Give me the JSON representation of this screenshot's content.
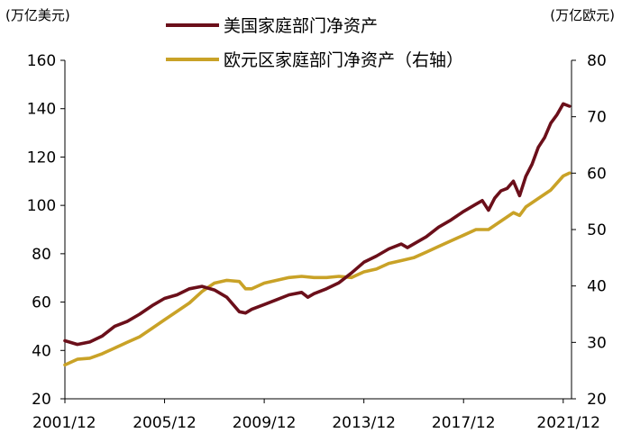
{
  "chart_data": {
    "type": "line",
    "title": "",
    "x_ticks": [
      "2001/12",
      "2005/12",
      "2009/12",
      "2013/12",
      "2017/12",
      "2021/12"
    ],
    "y_left": {
      "unit_label": "(万亿美元)",
      "ylim": [
        20,
        160
      ],
      "ticks": [
        20,
        40,
        60,
        80,
        100,
        120,
        140,
        160
      ]
    },
    "y_right": {
      "unit_label": "(万亿欧元)",
      "ylim": [
        20,
        80
      ],
      "ticks": [
        20,
        30,
        40,
        50,
        60,
        70,
        80
      ]
    },
    "legend_placement": "top-center",
    "series": [
      {
        "name": "美国家庭部门净资产",
        "axis": "left",
        "color": "#6b0f1a",
        "points": [
          [
            "2001/12",
            44
          ],
          [
            "2002/06",
            42.5
          ],
          [
            "2002/12",
            43.5
          ],
          [
            "2003/06",
            46
          ],
          [
            "2003/12",
            50
          ],
          [
            "2004/06",
            52
          ],
          [
            "2004/12",
            55
          ],
          [
            "2005/06",
            58.5
          ],
          [
            "2005/12",
            61.5
          ],
          [
            "2006/06",
            63
          ],
          [
            "2006/12",
            65.5
          ],
          [
            "2007/06",
            66.5
          ],
          [
            "2007/12",
            65
          ],
          [
            "2008/06",
            62
          ],
          [
            "2008/12",
            56
          ],
          [
            "2009/03",
            55.5
          ],
          [
            "2009/06",
            57
          ],
          [
            "2009/12",
            59
          ],
          [
            "2010/06",
            61
          ],
          [
            "2010/12",
            63
          ],
          [
            "2011/06",
            64
          ],
          [
            "2011/09",
            62
          ],
          [
            "2011/12",
            63.5
          ],
          [
            "2012/06",
            65.5
          ],
          [
            "2012/12",
            68
          ],
          [
            "2013/06",
            72
          ],
          [
            "2013/12",
            76.5
          ],
          [
            "2014/06",
            79
          ],
          [
            "2014/12",
            82
          ],
          [
            "2015/06",
            84
          ],
          [
            "2015/09",
            82.5
          ],
          [
            "2015/12",
            84
          ],
          [
            "2016/06",
            87
          ],
          [
            "2016/12",
            91
          ],
          [
            "2017/06",
            94
          ],
          [
            "2017/12",
            97.5
          ],
          [
            "2018/06",
            100.5
          ],
          [
            "2018/09",
            102
          ],
          [
            "2018/12",
            98
          ],
          [
            "2019/03",
            103
          ],
          [
            "2019/06",
            106
          ],
          [
            "2019/09",
            107
          ],
          [
            "2019/12",
            110
          ],
          [
            "2020/03",
            104
          ],
          [
            "2020/06",
            112
          ],
          [
            "2020/09",
            117
          ],
          [
            "2020/12",
            124
          ],
          [
            "2021/03",
            128
          ],
          [
            "2021/06",
            134
          ],
          [
            "2021/09",
            137.5
          ],
          [
            "2021/12",
            142
          ],
          [
            "2022/03",
            141
          ]
        ]
      },
      {
        "name": "欧元区家庭部门净资产（右轴）",
        "axis": "right",
        "color": "#c9a227",
        "points": [
          [
            "2001/12",
            26
          ],
          [
            "2002/06",
            27
          ],
          [
            "2002/12",
            27.2
          ],
          [
            "2003/06",
            28
          ],
          [
            "2003/12",
            29
          ],
          [
            "2004/06",
            30
          ],
          [
            "2004/12",
            31
          ],
          [
            "2005/06",
            32.5
          ],
          [
            "2005/12",
            34
          ],
          [
            "2006/06",
            35.5
          ],
          [
            "2006/12",
            37
          ],
          [
            "2007/06",
            39
          ],
          [
            "2007/12",
            40.5
          ],
          [
            "2008/06",
            41
          ],
          [
            "2008/12",
            40.8
          ],
          [
            "2009/03",
            39.5
          ],
          [
            "2009/06",
            39.5
          ],
          [
            "2009/12",
            40.5
          ],
          [
            "2010/06",
            41
          ],
          [
            "2010/12",
            41.5
          ],
          [
            "2011/06",
            41.7
          ],
          [
            "2011/12",
            41.5
          ],
          [
            "2012/06",
            41.5
          ],
          [
            "2012/12",
            41.7
          ],
          [
            "2013/06",
            41.5
          ],
          [
            "2013/12",
            42.5
          ],
          [
            "2014/06",
            43
          ],
          [
            "2014/12",
            44
          ],
          [
            "2015/06",
            44.5
          ],
          [
            "2015/12",
            45
          ],
          [
            "2016/06",
            46
          ],
          [
            "2016/12",
            47
          ],
          [
            "2017/06",
            48
          ],
          [
            "2017/12",
            49
          ],
          [
            "2018/06",
            50
          ],
          [
            "2018/12",
            50
          ],
          [
            "2019/06",
            51.5
          ],
          [
            "2019/12",
            53
          ],
          [
            "2020/03",
            52.5
          ],
          [
            "2020/06",
            54
          ],
          [
            "2020/12",
            55.5
          ],
          [
            "2021/06",
            57
          ],
          [
            "2021/12",
            59.5
          ],
          [
            "2022/03",
            60
          ]
        ]
      }
    ]
  }
}
